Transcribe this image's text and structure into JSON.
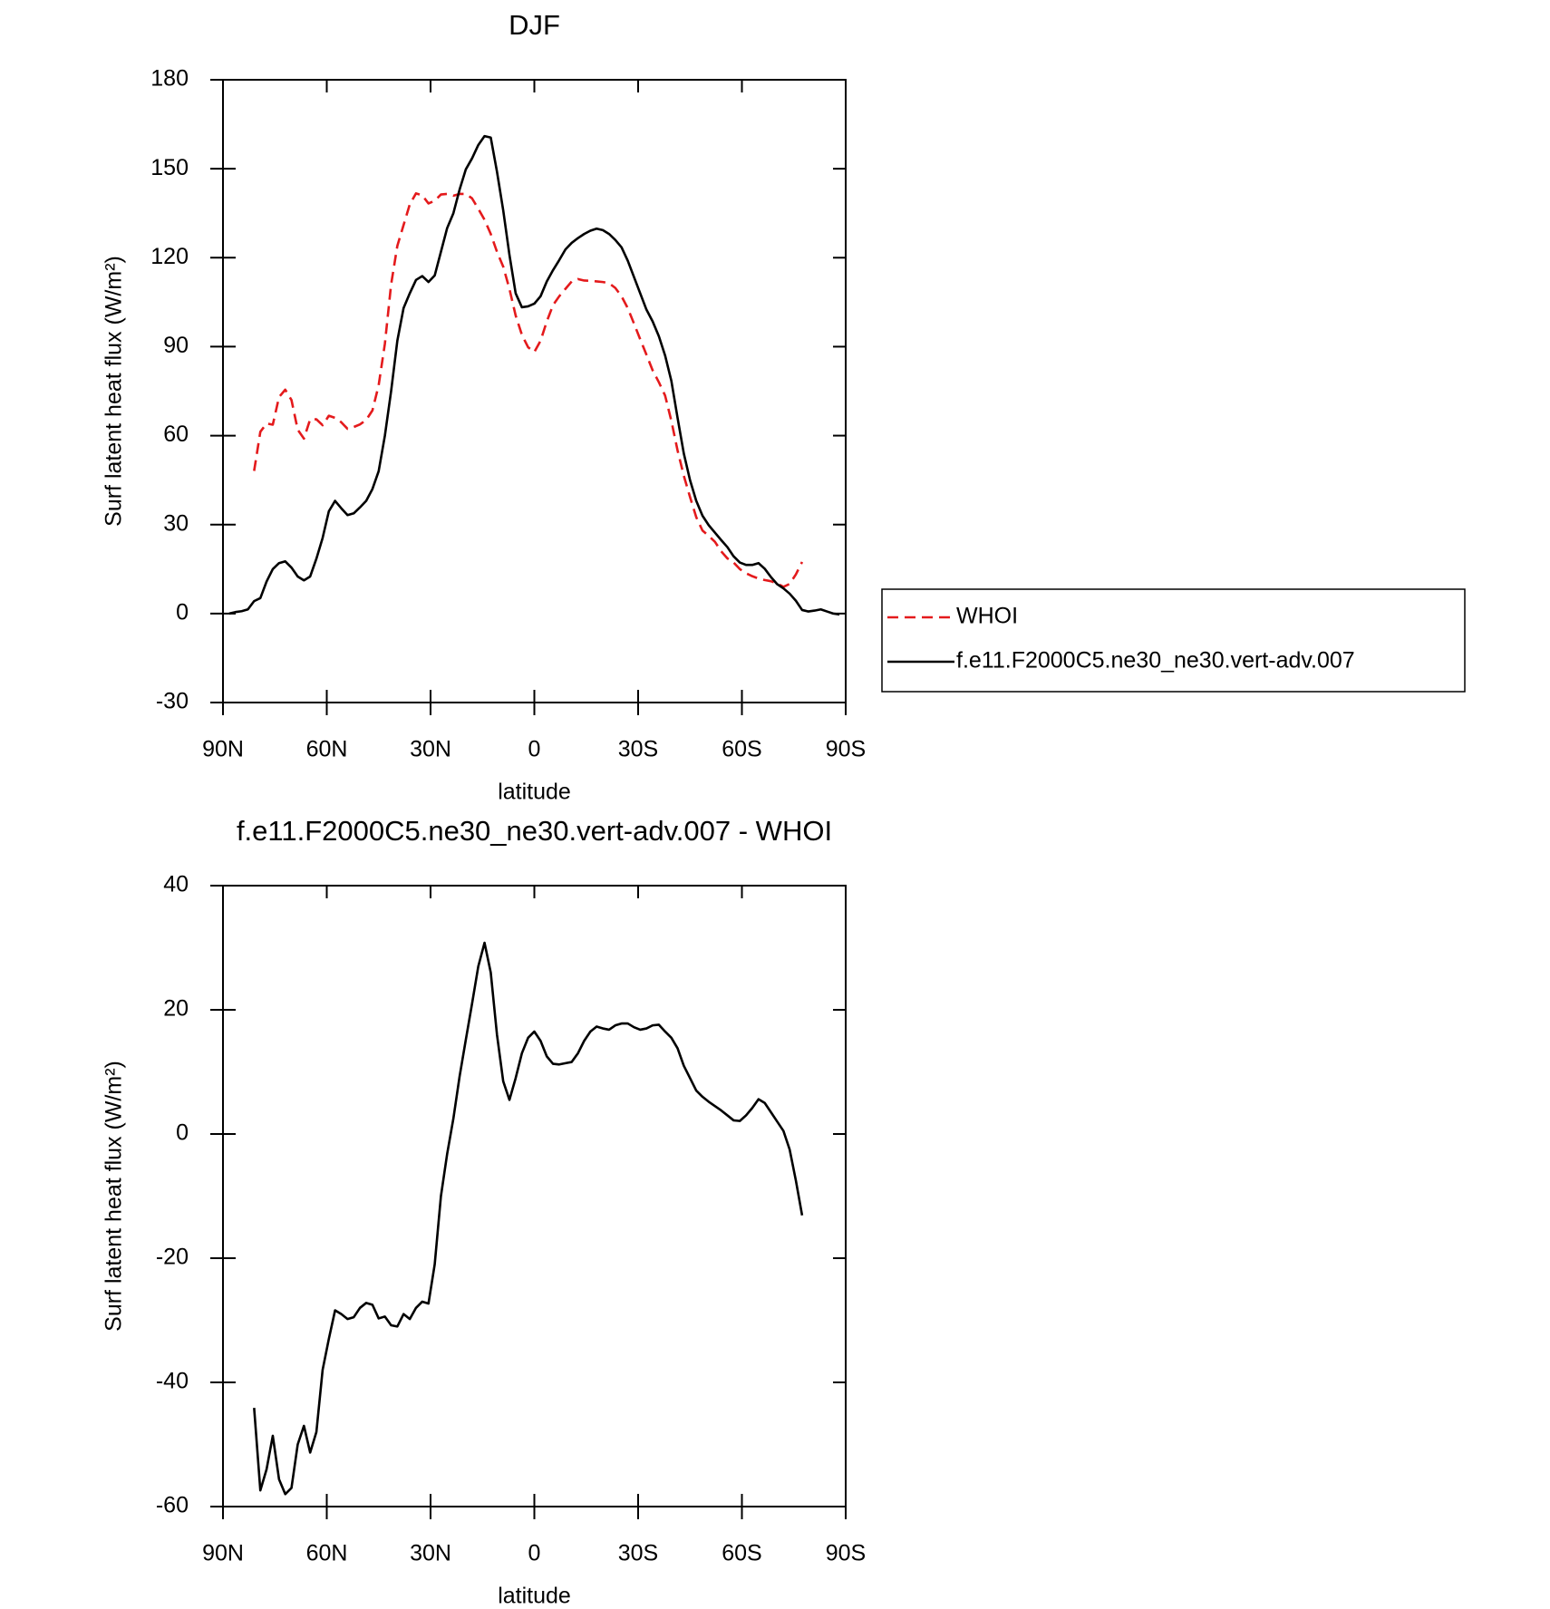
{
  "chart_data": [
    {
      "type": "line",
      "title": "DJF",
      "x_label": "latitude",
      "y_label": "Surf latent heat flux (W/m²)",
      "xlim": [
        90,
        -90
      ],
      "xticks": [
        {
          "value": 90,
          "label": "90N"
        },
        {
          "value": 60,
          "label": "60N"
        },
        {
          "value": 30,
          "label": "30N"
        },
        0,
        {
          "value": -30,
          "label": "30S"
        },
        {
          "value": -60,
          "label": "60S"
        },
        {
          "value": -90,
          "label": "90S"
        }
      ],
      "ylim": [
        -30,
        180
      ],
      "yticks": [
        -30,
        0,
        30,
        60,
        90,
        120,
        150,
        180
      ],
      "legend": "right",
      "x": [
        88.2,
        86.4,
        84.6,
        82.8,
        81,
        79.2,
        77.4,
        75.6,
        73.8,
        72,
        70.2,
        68.4,
        66.6,
        64.8,
        63,
        61.2,
        59.4,
        57.6,
        55.8,
        54,
        52.2,
        50.4,
        48.6,
        46.8,
        45,
        43.2,
        41.4,
        39.6,
        37.8,
        36,
        34.2,
        32.4,
        30.6,
        28.8,
        27,
        25.2,
        23.4,
        21.6,
        19.8,
        18,
        16.2,
        14.4,
        12.6,
        10.8,
        9,
        7.2,
        5.4,
        3.6,
        1.8,
        0,
        -1.8,
        -3.6,
        -5.4,
        -7.2,
        -9,
        -10.8,
        -12.6,
        -14.4,
        -16.2,
        -18,
        -19.8,
        -21.6,
        -23.4,
        -25.2,
        -27,
        -28.8,
        -30.6,
        -32.4,
        -34.2,
        -36,
        -37.8,
        -39.6,
        -41.4,
        -43.2,
        -45,
        -46.8,
        -48.6,
        -50.4,
        -52.2,
        -54,
        -55.8,
        -57.6,
        -59.4,
        -61.2,
        -63,
        -64.8,
        -66.6,
        -68.4,
        -70.2,
        -72,
        -73.8,
        -75.6,
        -77.4,
        -79.2,
        -81,
        -82.8,
        -84.6,
        -86.4,
        -88.2
      ],
      "series": [
        {
          "name": "WHOI",
          "color": "#e41a1c",
          "line_style": "dashed",
          "values": [
            null,
            null,
            null,
            null,
            48.1,
            61.3,
            64.1,
            63.7,
            73,
            75.5,
            72,
            62,
            59,
            65.5,
            65.5,
            63.5,
            66.7,
            66,
            64.5,
            62.3,
            62.9,
            63.8,
            65.3,
            68.5,
            77,
            91,
            111,
            124,
            131,
            138,
            141.7,
            141,
            138.3,
            139.2,
            141.3,
            141.5,
            140.9,
            141.5,
            141.5,
            140,
            136.5,
            132.8,
            128,
            122,
            117,
            109.5,
            100.5,
            94,
            89.8,
            88.2,
            92,
            98.5,
            104,
            107,
            109.5,
            112,
            112.8,
            112.3,
            112.2,
            112,
            111.8,
            111.4,
            109.8,
            107,
            103,
            97.8,
            92.5,
            87.3,
            82,
            78,
            73.5,
            65,
            55,
            46.5,
            39.3,
            32.5,
            28,
            26.2,
            24.2,
            21,
            18.6,
            17.2,
            15,
            13.6,
            12.6,
            11.8,
            11.3,
            10.9,
            10.2,
            9,
            10,
            13.2,
            17.4,
            null,
            null,
            null,
            null,
            null,
            null
          ]
        },
        {
          "name": "f.e11.F2000C5.ne30_ne30.vert-adv.007",
          "color": "#000000",
          "line_style": "solid",
          "values": [
            0,
            0.5,
            0.8,
            1.4,
            4.2,
            5.2,
            10.8,
            15,
            17,
            17.6,
            15.5,
            12.5,
            11.2,
            12.5,
            18.5,
            25.5,
            34.5,
            38,
            35.5,
            33.2,
            33.8,
            35.8,
            38,
            42,
            48,
            60,
            75,
            92,
            103,
            108,
            112.5,
            113.8,
            111.8,
            114,
            122,
            130,
            135,
            143,
            149.8,
            153.5,
            158,
            161,
            160.5,
            149,
            136,
            121,
            108,
            103.3,
            103.6,
            104.5,
            107,
            112,
            115.8,
            119.2,
            122.8,
            125,
            126.6,
            128,
            129.1,
            129.8,
            129.3,
            128,
            126,
            123.5,
            119,
            113.5,
            108,
            102.5,
            98.5,
            93.5,
            87,
            78.5,
            66,
            54,
            45,
            38,
            33,
            29.8,
            27.3,
            24.8,
            22.4,
            19.3,
            17.2,
            16.4,
            16.4,
            17,
            15.1,
            12.3,
            9.9,
            8.5,
            6.7,
            4.3,
            1.2,
            0.7,
            1,
            1.4,
            0.7,
            0,
            -0.3
          ]
        }
      ]
    },
    {
      "type": "line",
      "title": "f.e11.F2000C5.ne30_ne30.vert-adv.007 - WHOI",
      "x_label": "latitude",
      "y_label": "Surf latent heat flux (W/m²)",
      "xlim": [
        90,
        -90
      ],
      "xticks": [
        {
          "value": 90,
          "label": "90N"
        },
        {
          "value": 60,
          "label": "60N"
        },
        {
          "value": 30,
          "label": "30N"
        },
        0,
        {
          "value": -30,
          "label": "30S"
        },
        {
          "value": -60,
          "label": "60S"
        },
        {
          "value": -90,
          "label": "90S"
        }
      ],
      "ylim": [
        -60,
        40
      ],
      "yticks": [
        -60,
        -40,
        -20,
        0,
        20,
        40
      ],
      "x": [
        88.2,
        86.4,
        84.6,
        82.8,
        81,
        79.2,
        77.4,
        75.6,
        73.8,
        72,
        70.2,
        68.4,
        66.6,
        64.8,
        63,
        61.2,
        59.4,
        57.6,
        55.8,
        54,
        52.2,
        50.4,
        48.6,
        46.8,
        45,
        43.2,
        41.4,
        39.6,
        37.8,
        36,
        34.2,
        32.4,
        30.6,
        28.8,
        27,
        25.2,
        23.4,
        21.6,
        19.8,
        18,
        16.2,
        14.4,
        12.6,
        10.8,
        9,
        7.2,
        5.4,
        3.6,
        1.8,
        0,
        -1.8,
        -3.6,
        -5.4,
        -7.2,
        -9,
        -10.8,
        -12.6,
        -14.4,
        -16.2,
        -18,
        -19.8,
        -21.6,
        -23.4,
        -25.2,
        -27,
        -28.8,
        -30.6,
        -32.4,
        -34.2,
        -36,
        -37.8,
        -39.6,
        -41.4,
        -43.2,
        -45,
        -46.8,
        -48.6,
        -50.4,
        -52.2,
        -54,
        -55.8,
        -57.6,
        -59.4,
        -61.2,
        -63,
        -64.8,
        -66.6,
        -68.4,
        -70.2,
        -72,
        -73.8,
        -75.6,
        -77.4,
        -79.2,
        -81,
        -82.8,
        -84.6,
        -86.4,
        -88.2
      ],
      "series": [
        {
          "color": "#000000",
          "line_style": "solid",
          "values": [
            null,
            null,
            null,
            null,
            -44.1,
            -57.4,
            -54,
            -48.6,
            -55.6,
            -58,
            -57,
            -50,
            -47,
            -51.3,
            -48,
            -38,
            -33,
            -28.4,
            -29,
            -29.8,
            -29.5,
            -28,
            -27.2,
            -27.5,
            -29.7,
            -29.4,
            -30.8,
            -31,
            -29,
            -29.8,
            -28,
            -27,
            -27.3,
            -21,
            -10,
            -3.2,
            2.5,
            9.3,
            15.2,
            21,
            27,
            30.8,
            26,
            16,
            8.5,
            5.5,
            9,
            13,
            15.5,
            16.5,
            15,
            12.5,
            11.3,
            11.2,
            11.4,
            11.6,
            13,
            15,
            16.5,
            17.3,
            17,
            16.8,
            17.5,
            17.8,
            17.8,
            17.2,
            16.8,
            17,
            17.5,
            17.6,
            16.5,
            15.5,
            13.8,
            11,
            9,
            7,
            6,
            5.2,
            4.5,
            3.8,
            3,
            2.2,
            2.1,
            3,
            4.2,
            5.6,
            5,
            3.5,
            2,
            0.5,
            -2.5,
            -7.5,
            -13.1,
            null,
            null,
            null,
            null,
            null,
            null
          ]
        }
      ]
    }
  ]
}
